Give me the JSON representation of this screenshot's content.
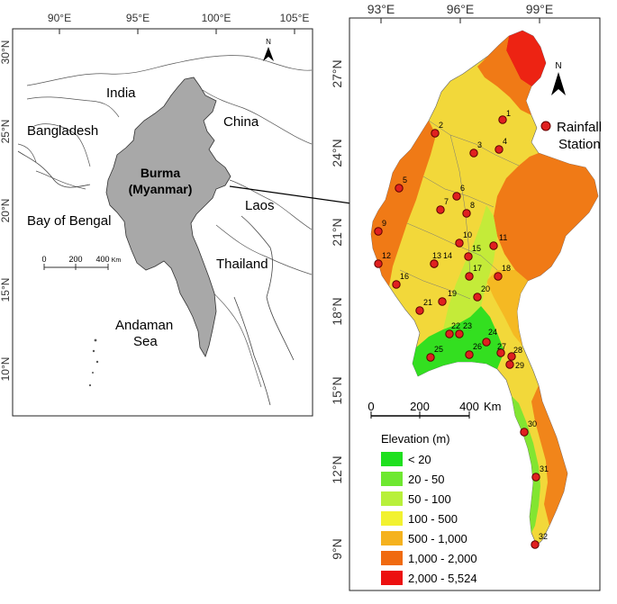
{
  "left_map": {
    "top_ticks": [
      "90°E",
      "95°E",
      "100°E",
      "105°E"
    ],
    "left_ticks": [
      "30°N",
      "25°N",
      "20°N",
      "15°N",
      "10°N"
    ],
    "countries": [
      "India",
      "China",
      "Bangladesh",
      "Laos",
      "Bay of Bengal",
      "Thailand",
      "Andaman",
      "Sea"
    ],
    "highlight_line1": "Burma",
    "highlight_line2": "(Myanmar)",
    "scale_labels": [
      "0",
      "200",
      "400",
      "Km"
    ],
    "north_label": "N"
  },
  "right_map": {
    "top_ticks": [
      "93°E",
      "96°E",
      "99°E"
    ],
    "left_ticks": [
      "27°N",
      "24°N",
      "21°N",
      "18°N",
      "15°N",
      "12°N",
      "9°N"
    ],
    "north_label": "N",
    "station_legend_line1": "Rainfall",
    "station_legend_line2": "Station",
    "scale_labels": [
      "0",
      "200",
      "400",
      "Km"
    ],
    "stations": [
      "1",
      "2",
      "3",
      "4",
      "5",
      "6",
      "7",
      "8",
      "9",
      "10",
      "11",
      "12",
      "13",
      "14",
      "15",
      "16",
      "17",
      "18",
      "19",
      "20",
      "21",
      "22",
      "23",
      "24",
      "25",
      "26",
      "27",
      "28",
      "29",
      "30",
      "31",
      "32"
    ]
  },
  "elevation_legend": {
    "title": "Elevation (m)",
    "classes": [
      {
        "label": "< 20",
        "color": "#1ee01e"
      },
      {
        "label": "20 - 50",
        "color": "#6ee830"
      },
      {
        "label": "50 - 100",
        "color": "#b8f03a"
      },
      {
        "label": "100 - 500",
        "color": "#f2f230"
      },
      {
        "label": "500 - 1,000",
        "color": "#f5b21e"
      },
      {
        "label": "1,000 - 2,000",
        "color": "#f06a10"
      },
      {
        "label": "2,000 - 5,524",
        "color": "#ec1010"
      }
    ]
  },
  "colors": {
    "station": "#e02020",
    "burma_fill": "#a8a8a8",
    "frame": "#222222"
  }
}
